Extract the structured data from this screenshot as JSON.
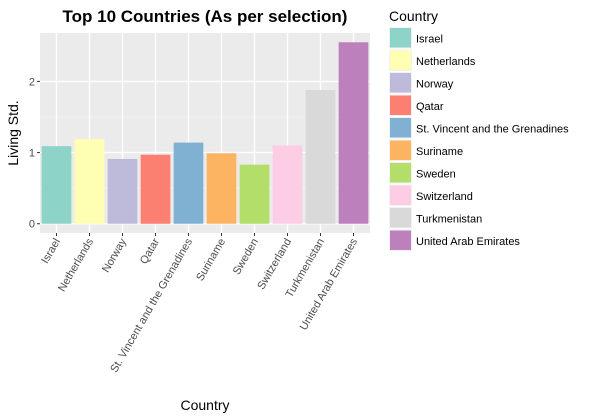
{
  "chart_data": {
    "type": "bar",
    "title": "Top 10 Countries (As per selection)",
    "xlabel": "Country",
    "ylabel": "Living Std.",
    "categories": [
      "Israel",
      "Netherlands",
      "Norway",
      "Qatar",
      "St. Vincent and the Grenadines",
      "Suriname",
      "Sweden",
      "Switzerland",
      "Turkmenistan",
      "United Arab Emirates"
    ],
    "values": [
      1.09,
      1.19,
      0.91,
      0.97,
      1.14,
      0.99,
      0.83,
      1.1,
      1.88,
      2.55
    ],
    "colors": [
      "#8DD3C7",
      "#FFFFB3",
      "#BEBADA",
      "#FB8072",
      "#80B1D3",
      "#FDB462",
      "#B3DE69",
      "#FCCDE5",
      "#D9D9D9",
      "#BC80BD"
    ],
    "ylim": [
      -0.13,
      2.68
    ],
    "yticks": [
      0,
      1,
      2
    ],
    "grid": true,
    "legend": {
      "title": "Country",
      "position": "right",
      "items": [
        "Israel",
        "Netherlands",
        "Norway",
        "Qatar",
        "St. Vincent and the Grenadines",
        "Suriname",
        "Sweden",
        "Switzerland",
        "Turkmenistan",
        "United Arab Emirates"
      ]
    }
  }
}
